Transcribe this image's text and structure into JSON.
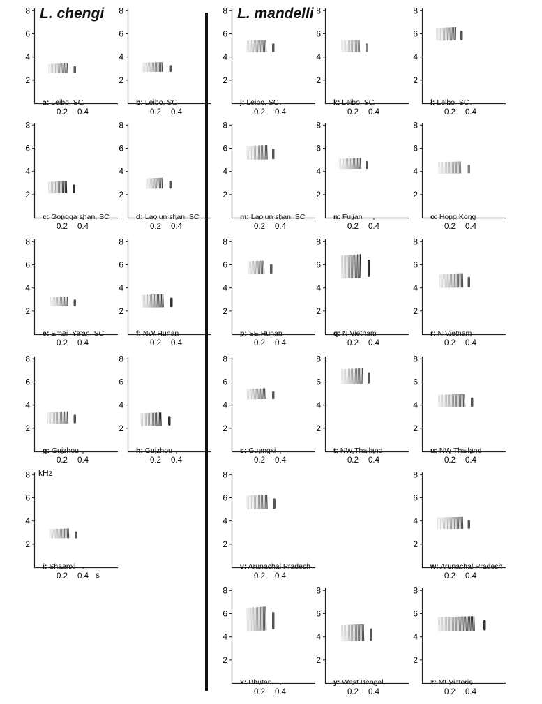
{
  "species": {
    "left": "L. chengi",
    "right": "L. mandelli"
  },
  "axis": {
    "y_ticks": [
      "2",
      "4",
      "6",
      "8"
    ],
    "x_ticks": [
      "0.2",
      "0.4"
    ],
    "y_unit": "kHz",
    "x_unit": "s"
  },
  "panels": [
    {
      "letter": "a:",
      "location": "Leibo, SC",
      "f_lo": 2.6,
      "f_hi": 3.4,
      "t0": 0.07,
      "t1": 0.25,
      "t2": 0.32,
      "dens": "mid"
    },
    {
      "letter": "b:",
      "location": "Leibo, SC",
      "f_lo": 2.7,
      "f_hi": 3.5,
      "t0": 0.08,
      "t1": 0.26,
      "t2": 0.34,
      "dens": "mid"
    },
    {
      "letter": "c:",
      "location": "Gongga shan, SC",
      "f_lo": 2.1,
      "f_hi": 3.1,
      "t0": 0.07,
      "t1": 0.24,
      "t2": 0.31,
      "dens": "dark"
    },
    {
      "letter": "d:",
      "location": "Laojun shan, SC",
      "f_lo": 2.5,
      "f_hi": 3.4,
      "t0": 0.11,
      "t1": 0.26,
      "t2": 0.34,
      "dens": "mid"
    },
    {
      "letter": "e:",
      "location": "Emei–Ya'an, SC",
      "f_lo": 2.4,
      "f_hi": 3.2,
      "t0": 0.09,
      "t1": 0.25,
      "t2": 0.32,
      "dens": "mid"
    },
    {
      "letter": "f:",
      "location": "NW Hunan",
      "f_lo": 2.3,
      "f_hi": 3.4,
      "t0": 0.07,
      "t1": 0.27,
      "t2": 0.35,
      "dens": "dark"
    },
    {
      "letter": "g:",
      "location": "Guizhou",
      "f_lo": 2.4,
      "f_hi": 3.4,
      "t0": 0.06,
      "t1": 0.25,
      "t2": 0.32,
      "dens": "mid"
    },
    {
      "letter": "h:",
      "location": "Guizhou",
      "f_lo": 2.2,
      "f_hi": 3.3,
      "t0": 0.06,
      "t1": 0.25,
      "t2": 0.33,
      "dens": "dark"
    },
    {
      "letter": "i:",
      "location": "Shaanxi",
      "f_lo": 2.5,
      "f_hi": 3.3,
      "t0": 0.08,
      "t1": 0.26,
      "t2": 0.33,
      "dens": "mid"
    },
    {
      "letter": "j:",
      "location": "Leibo, SC",
      "f_lo": 4.4,
      "f_hi": 5.4,
      "t0": 0.07,
      "t1": 0.26,
      "t2": 0.33,
      "dens": "mid"
    },
    {
      "letter": "k:",
      "location": "Leibo, SC",
      "f_lo": 4.4,
      "f_hi": 5.4,
      "t0": 0.09,
      "t1": 0.26,
      "t2": 0.33,
      "dens": "light"
    },
    {
      "letter": "l:",
      "location": "Leibo, SC",
      "f_lo": 5.4,
      "f_hi": 6.5,
      "t0": 0.07,
      "t1": 0.25,
      "t2": 0.31,
      "dens": "mid"
    },
    {
      "letter": "m:",
      "location": "Laojun shan, SC",
      "f_lo": 5.0,
      "f_hi": 6.2,
      "t0": 0.08,
      "t1": 0.27,
      "t2": 0.33,
      "dens": "mid"
    },
    {
      "letter": "n:",
      "location": "Fujian",
      "f_lo": 4.2,
      "f_hi": 5.1,
      "t0": 0.07,
      "t1": 0.27,
      "t2": 0.33,
      "dens": "mid"
    },
    {
      "letter": "o:",
      "location": "Hong Kong",
      "f_lo": 3.8,
      "f_hi": 4.8,
      "t0": 0.09,
      "t1": 0.3,
      "t2": 0.38,
      "dens": "light"
    },
    {
      "letter": "p:",
      "location": "SE Hunan",
      "f_lo": 5.2,
      "f_hi": 6.3,
      "t0": 0.09,
      "t1": 0.24,
      "t2": 0.31,
      "dens": "mid"
    },
    {
      "letter": "q:",
      "location": "N Vietnam",
      "f_lo": 4.8,
      "f_hi": 6.8,
      "t0": 0.09,
      "t1": 0.27,
      "t2": 0.35,
      "dens": "dark"
    },
    {
      "letter": "r:",
      "location": "N Vietnam",
      "f_lo": 4.0,
      "f_hi": 5.2,
      "t0": 0.1,
      "t1": 0.32,
      "t2": 0.38,
      "dens": "mid"
    },
    {
      "letter": "s:",
      "location": "Guangxi",
      "f_lo": 4.5,
      "f_hi": 5.4,
      "t0": 0.08,
      "t1": 0.25,
      "t2": 0.33,
      "dens": "mid"
    },
    {
      "letter": "t:",
      "location": "NW Thailand",
      "f_lo": 5.8,
      "f_hi": 7.1,
      "t0": 0.09,
      "t1": 0.29,
      "t2": 0.35,
      "dens": "mid"
    },
    {
      "letter": "u:",
      "location": "NW Thailand",
      "f_lo": 3.8,
      "f_hi": 4.9,
      "t0": 0.09,
      "t1": 0.34,
      "t2": 0.41,
      "dens": "mid"
    },
    {
      "letter": "v:",
      "location": "Arunachal Pradesh",
      "f_lo": 5.0,
      "f_hi": 6.2,
      "t0": 0.08,
      "t1": 0.27,
      "t2": 0.34,
      "dens": "mid"
    },
    {
      "letter": "w:",
      "location": "Arunachal Pradesh",
      "f_lo": 3.3,
      "f_hi": 4.3,
      "t0": 0.08,
      "t1": 0.32,
      "t2": 0.38,
      "dens": "mid"
    },
    {
      "letter": "x:",
      "location": "Bhutan",
      "f_lo": 4.5,
      "f_hi": 6.5,
      "t0": 0.08,
      "t1": 0.26,
      "t2": 0.33,
      "dens": "mid"
    },
    {
      "letter": "y:",
      "location": "West Bengal",
      "f_lo": 3.6,
      "f_hi": 5.0,
      "t0": 0.09,
      "t1": 0.3,
      "t2": 0.37,
      "dens": "mid"
    },
    {
      "letter": "z:",
      "location": "Mt Victoria",
      "f_lo": 4.5,
      "f_hi": 5.7,
      "t0": 0.09,
      "t1": 0.43,
      "t2": 0.53,
      "dens": "dark"
    }
  ]
}
